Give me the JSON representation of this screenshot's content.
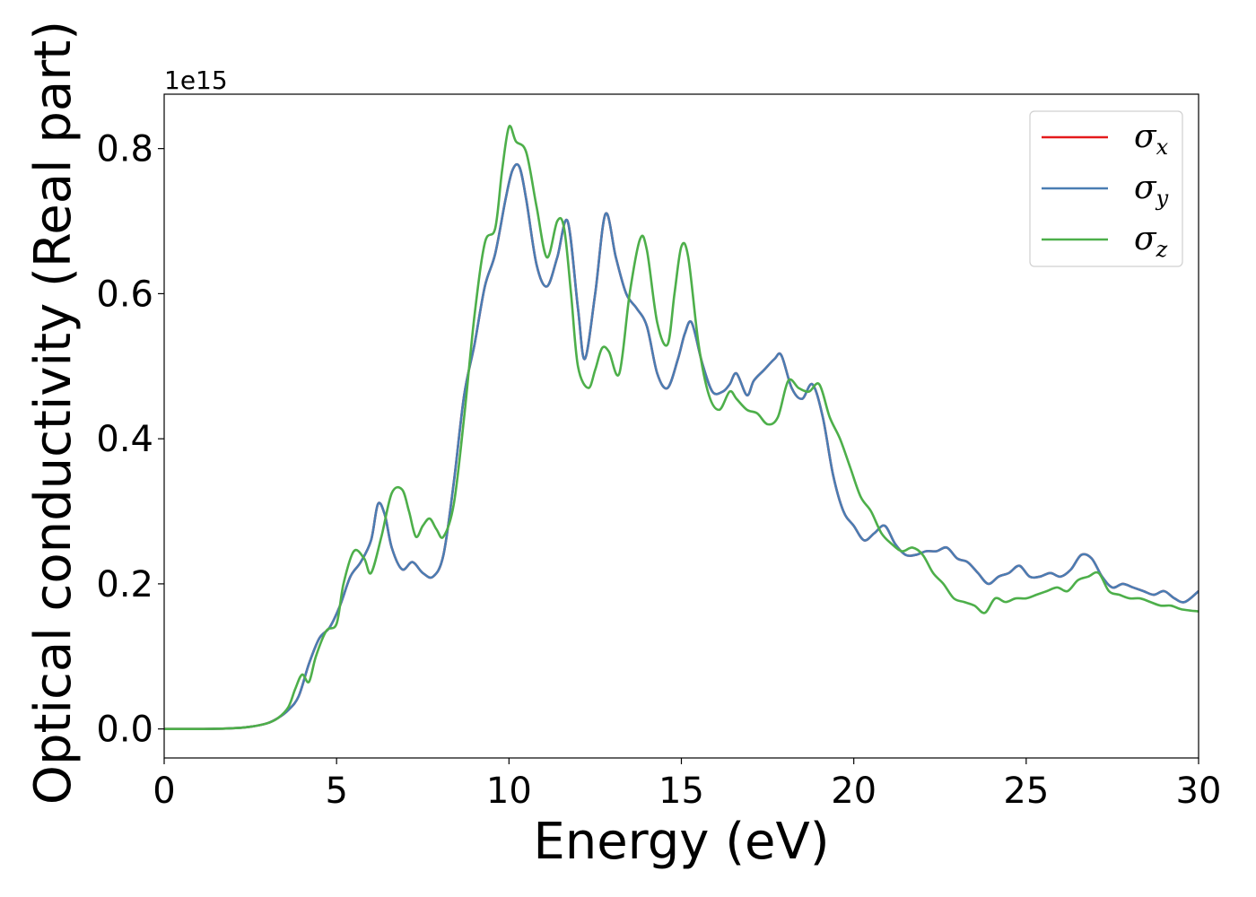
{
  "chart_data": {
    "type": "line",
    "title": "",
    "xlabel": "Energy (eV)",
    "ylabel": "Optical conductivity (Real part)",
    "y_offset_label": "1e15",
    "xlim": [
      0,
      30
    ],
    "ylim": [
      -0.04,
      0.875
    ],
    "xticks": [
      0,
      5,
      10,
      15,
      20,
      25,
      30
    ],
    "yticks": [
      0.0,
      0.2,
      0.4,
      0.6,
      0.8
    ],
    "xtick_labels": [
      "0",
      "5",
      "10",
      "15",
      "20",
      "25",
      "30"
    ],
    "ytick_labels": [
      "0.0",
      "0.2",
      "0.4",
      "0.6",
      "0.8"
    ],
    "grid": false,
    "legend_position": "top-right",
    "series": [
      {
        "name": "σx",
        "legend_main": "σ",
        "legend_sub": "x",
        "color": "#e41a1c",
        "x": [
          0,
          1,
          2,
          2.5,
          3,
          3.3,
          3.6,
          3.9,
          4.2,
          4.5,
          4.8,
          5.1,
          5.4,
          5.7,
          6.0,
          6.2,
          6.4,
          6.6,
          6.9,
          7.2,
          7.5,
          7.8,
          8.1,
          8.4,
          8.7,
          9.0,
          9.3,
          9.6,
          9.9,
          10.1,
          10.3,
          10.5,
          10.8,
          11.1,
          11.4,
          11.7,
          12.0,
          12.2,
          12.5,
          12.8,
          13.1,
          13.4,
          13.7,
          14.0,
          14.3,
          14.6,
          14.9,
          15.1,
          15.3,
          15.6,
          15.9,
          16.2,
          16.4,
          16.6,
          16.9,
          17.1,
          17.4,
          17.7,
          17.9,
          18.2,
          18.5,
          18.8,
          19.1,
          19.4,
          19.7,
          20.0,
          20.3,
          20.6,
          20.9,
          21.2,
          21.5,
          21.8,
          22.1,
          22.4,
          22.7,
          23.0,
          23.3,
          23.6,
          23.9,
          24.2,
          24.5,
          24.8,
          25.1,
          25.4,
          25.7,
          26.0,
          26.3,
          26.6,
          26.9,
          27.2,
          27.5,
          27.8,
          28.1,
          28.4,
          28.7,
          29.0,
          29.3,
          29.6,
          30.0
        ],
        "y": [
          0.0,
          0.0,
          0.001,
          0.003,
          0.008,
          0.015,
          0.026,
          0.045,
          0.09,
          0.125,
          0.14,
          0.17,
          0.21,
          0.23,
          0.26,
          0.31,
          0.295,
          0.25,
          0.22,
          0.23,
          0.215,
          0.21,
          0.24,
          0.34,
          0.46,
          0.53,
          0.61,
          0.655,
          0.73,
          0.77,
          0.775,
          0.73,
          0.64,
          0.61,
          0.65,
          0.7,
          0.58,
          0.51,
          0.6,
          0.71,
          0.65,
          0.6,
          0.58,
          0.555,
          0.49,
          0.47,
          0.51,
          0.545,
          0.56,
          0.505,
          0.465,
          0.465,
          0.475,
          0.49,
          0.46,
          0.48,
          0.495,
          0.51,
          0.515,
          0.47,
          0.455,
          0.475,
          0.43,
          0.35,
          0.3,
          0.28,
          0.26,
          0.27,
          0.28,
          0.255,
          0.24,
          0.24,
          0.245,
          0.245,
          0.25,
          0.235,
          0.23,
          0.215,
          0.2,
          0.21,
          0.215,
          0.225,
          0.21,
          0.21,
          0.215,
          0.21,
          0.22,
          0.24,
          0.235,
          0.21,
          0.195,
          0.2,
          0.195,
          0.19,
          0.185,
          0.19,
          0.18,
          0.175,
          0.19
        ]
      },
      {
        "name": "σy",
        "legend_main": "σ",
        "legend_sub": "y",
        "color": "#4a7db3",
        "x": [
          0,
          1,
          2,
          2.5,
          3,
          3.3,
          3.6,
          3.9,
          4.2,
          4.5,
          4.8,
          5.1,
          5.4,
          5.7,
          6.0,
          6.2,
          6.4,
          6.6,
          6.9,
          7.2,
          7.5,
          7.8,
          8.1,
          8.4,
          8.7,
          9.0,
          9.3,
          9.6,
          9.9,
          10.1,
          10.3,
          10.5,
          10.8,
          11.1,
          11.4,
          11.7,
          12.0,
          12.2,
          12.5,
          12.8,
          13.1,
          13.4,
          13.7,
          14.0,
          14.3,
          14.6,
          14.9,
          15.1,
          15.3,
          15.6,
          15.9,
          16.2,
          16.4,
          16.6,
          16.9,
          17.1,
          17.4,
          17.7,
          17.9,
          18.2,
          18.5,
          18.8,
          19.1,
          19.4,
          19.7,
          20.0,
          20.3,
          20.6,
          20.9,
          21.2,
          21.5,
          21.8,
          22.1,
          22.4,
          22.7,
          23.0,
          23.3,
          23.6,
          23.9,
          24.2,
          24.5,
          24.8,
          25.1,
          25.4,
          25.7,
          26.0,
          26.3,
          26.6,
          26.9,
          27.2,
          27.5,
          27.8,
          28.1,
          28.4,
          28.7,
          29.0,
          29.3,
          29.6,
          30.0
        ],
        "y": [
          0.0,
          0.0,
          0.001,
          0.003,
          0.008,
          0.015,
          0.026,
          0.045,
          0.09,
          0.125,
          0.14,
          0.17,
          0.21,
          0.23,
          0.26,
          0.31,
          0.295,
          0.25,
          0.22,
          0.23,
          0.215,
          0.21,
          0.24,
          0.34,
          0.46,
          0.53,
          0.61,
          0.655,
          0.73,
          0.77,
          0.775,
          0.73,
          0.64,
          0.61,
          0.65,
          0.7,
          0.58,
          0.51,
          0.6,
          0.71,
          0.65,
          0.6,
          0.58,
          0.555,
          0.49,
          0.47,
          0.51,
          0.545,
          0.56,
          0.505,
          0.465,
          0.465,
          0.475,
          0.49,
          0.46,
          0.48,
          0.495,
          0.51,
          0.515,
          0.47,
          0.455,
          0.475,
          0.43,
          0.35,
          0.3,
          0.28,
          0.26,
          0.27,
          0.28,
          0.255,
          0.24,
          0.24,
          0.245,
          0.245,
          0.25,
          0.235,
          0.23,
          0.215,
          0.2,
          0.21,
          0.215,
          0.225,
          0.21,
          0.21,
          0.215,
          0.21,
          0.22,
          0.24,
          0.235,
          0.21,
          0.195,
          0.2,
          0.195,
          0.19,
          0.185,
          0.19,
          0.18,
          0.175,
          0.19
        ]
      },
      {
        "name": "σz",
        "legend_main": "σ",
        "legend_sub": "z",
        "color": "#4daf4a",
        "x": [
          0,
          1,
          2,
          2.5,
          3,
          3.3,
          3.6,
          3.8,
          4.0,
          4.2,
          4.4,
          4.7,
          5.0,
          5.2,
          5.5,
          5.8,
          6.0,
          6.3,
          6.6,
          6.9,
          7.1,
          7.3,
          7.5,
          7.7,
          7.9,
          8.1,
          8.4,
          8.7,
          9.0,
          9.3,
          9.6,
          9.8,
          10.0,
          10.2,
          10.5,
          10.8,
          11.1,
          11.4,
          11.6,
          11.8,
          12.0,
          12.3,
          12.5,
          12.7,
          12.9,
          13.2,
          13.5,
          13.8,
          14.0,
          14.3,
          14.6,
          14.8,
          15.0,
          15.2,
          15.5,
          15.8,
          16.1,
          16.4,
          16.6,
          16.9,
          17.2,
          17.5,
          17.8,
          18.1,
          18.4,
          18.7,
          19.0,
          19.3,
          19.6,
          19.9,
          20.2,
          20.5,
          20.8,
          21.1,
          21.4,
          21.7,
          22.0,
          22.3,
          22.6,
          22.9,
          23.2,
          23.5,
          23.8,
          24.1,
          24.4,
          24.7,
          25.0,
          25.3,
          25.6,
          25.9,
          26.2,
          26.5,
          26.8,
          27.1,
          27.4,
          27.7,
          28.0,
          28.3,
          28.6,
          28.9,
          29.2,
          29.5,
          30.0
        ],
        "y": [
          0.0,
          0.0,
          0.001,
          0.003,
          0.008,
          0.015,
          0.03,
          0.055,
          0.075,
          0.065,
          0.1,
          0.135,
          0.145,
          0.2,
          0.245,
          0.235,
          0.215,
          0.265,
          0.325,
          0.33,
          0.3,
          0.265,
          0.28,
          0.29,
          0.275,
          0.265,
          0.31,
          0.43,
          0.57,
          0.67,
          0.69,
          0.77,
          0.83,
          0.81,
          0.795,
          0.72,
          0.65,
          0.7,
          0.69,
          0.6,
          0.5,
          0.47,
          0.495,
          0.525,
          0.52,
          0.49,
          0.6,
          0.675,
          0.66,
          0.56,
          0.53,
          0.6,
          0.665,
          0.65,
          0.53,
          0.46,
          0.44,
          0.465,
          0.455,
          0.44,
          0.435,
          0.42,
          0.43,
          0.48,
          0.47,
          0.465,
          0.475,
          0.43,
          0.4,
          0.36,
          0.32,
          0.3,
          0.27,
          0.255,
          0.245,
          0.25,
          0.24,
          0.215,
          0.2,
          0.18,
          0.175,
          0.17,
          0.16,
          0.18,
          0.175,
          0.18,
          0.18,
          0.185,
          0.19,
          0.195,
          0.19,
          0.205,
          0.21,
          0.215,
          0.19,
          0.185,
          0.18,
          0.18,
          0.175,
          0.17,
          0.17,
          0.165,
          0.162
        ]
      }
    ]
  }
}
